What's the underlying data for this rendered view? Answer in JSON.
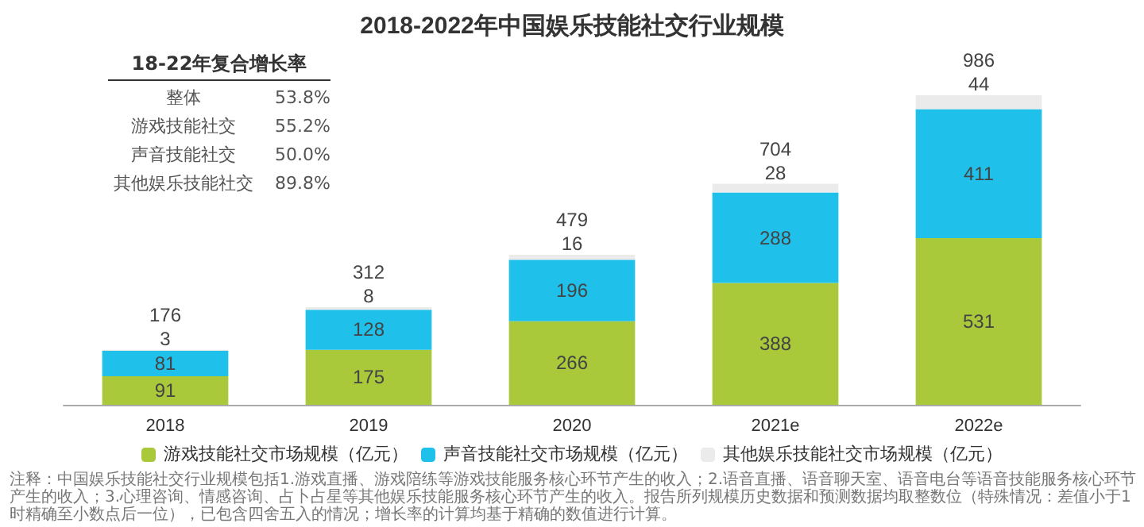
{
  "chart_data": {
    "type": "bar",
    "title": "2018-2022年中国娱乐技能社交行业规模",
    "categories": [
      "2018",
      "2019",
      "2020",
      "2021e",
      "2022e"
    ],
    "stacked": true,
    "data_labels": true,
    "legend": "bottom",
    "series": [
      {
        "name": "游戏技能社交市场规模（亿元）",
        "color": "#a9c93a",
        "values": [
          91,
          175,
          266,
          388,
          531
        ]
      },
      {
        "name": "声音技能社交市场规模（亿元）",
        "color": "#1fc1ea",
        "values": [
          81,
          128,
          196,
          288,
          411
        ]
      },
      {
        "name": "其他娱乐技能社交市场规模（亿元）",
        "color": "#ebebeb",
        "values": [
          3,
          8,
          16,
          28,
          44
        ]
      }
    ],
    "totals": [
      "176",
      "312",
      "479",
      "704",
      "986"
    ],
    "annotations": [
      "18-22年复合增长率",
      "整体",
      "53.8%",
      "游戏技能社交",
      "55.2%",
      "声音技能社交",
      "50.0%",
      "其他娱乐技能社交",
      "89.8%",
      "注释：中国娱乐技能社交行业规模包括1.游戏直播、游戏陪练等游戏技能服务核心环节产生的收入；2.语音直播、语音聊天室、语音电台等语音技能服务核心环节产生的收入；3.心理咨询、情感咨询、占卜占星等其他娱乐技能服务核心环节产生的收入。报告所列规模历史数据和预测数据均取整数位（特殊情况：差值小于1时精确至小数点后一位），已包含四舍五入的情况；增长率的计算均基于精确的数值进行计算。"
    ]
  }
}
